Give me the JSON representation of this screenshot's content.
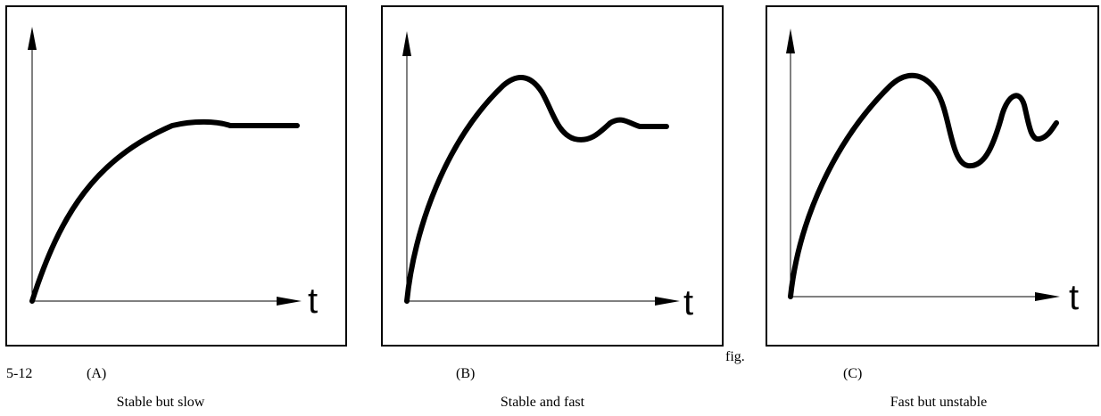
{
  "figure": {
    "number": "5-12",
    "fig_word": "fig."
  },
  "panels": [
    {
      "id": "A",
      "label": "(A)",
      "caption": "Stable but slow",
      "time_axis_label": "t"
    },
    {
      "id": "B",
      "label": "(B)",
      "caption": "Stable and fast",
      "time_axis_label": "t"
    },
    {
      "id": "C",
      "label": "(C)",
      "caption": "Fast but unstable",
      "time_axis_label": "t"
    }
  ]
}
